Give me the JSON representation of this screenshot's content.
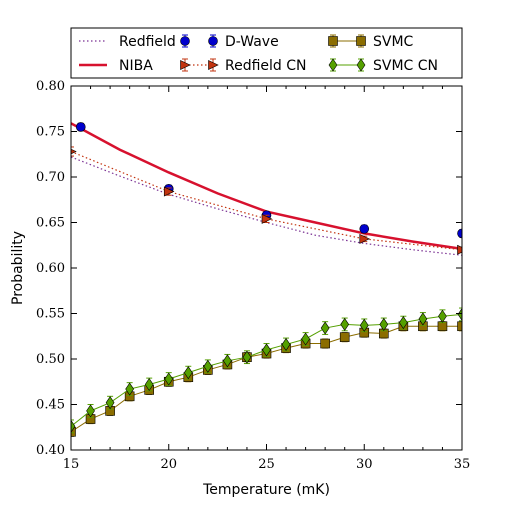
{
  "chart_data": {
    "type": "line",
    "xlabel": "Temperature (mK)",
    "ylabel": "Probability",
    "xlim": [
      15,
      35
    ],
    "ylim": [
      0.4,
      0.8
    ],
    "xticks": [
      15,
      20,
      25,
      30,
      35
    ],
    "xtick_labels": [
      "15",
      "20",
      "25",
      "30",
      "35"
    ],
    "yticks": [
      0.4,
      0.45,
      0.5,
      0.55,
      0.6,
      0.65,
      0.7,
      0.75,
      0.8
    ],
    "ytick_labels": [
      "0.40",
      "0.45",
      "0.50",
      "0.55",
      "0.60",
      "0.65",
      "0.70",
      "0.75",
      "0.80"
    ],
    "grid": false,
    "legend_position": "top",
    "series": [
      {
        "name": "Redfield",
        "style": "dotted-line",
        "color": "#7b3294",
        "x": [
          15,
          17.5,
          20,
          22.5,
          25,
          27.5,
          30,
          32.5,
          35
        ],
        "y": [
          0.722,
          0.701,
          0.681,
          0.665,
          0.65,
          0.636,
          0.627,
          0.62,
          0.614
        ]
      },
      {
        "name": "NIBA",
        "style": "solid-line",
        "color": "#d7112e",
        "x": [
          15,
          17.5,
          20,
          22.5,
          25,
          27.5,
          30,
          32.5,
          35
        ],
        "y": [
          0.759,
          0.73,
          0.705,
          0.682,
          0.662,
          0.65,
          0.638,
          0.629,
          0.621
        ]
      },
      {
        "name": "D-Wave",
        "style": "markers-circle",
        "color": "#0000cc",
        "x": [
          15.5,
          20,
          25,
          30,
          35
        ],
        "y": [
          0.755,
          0.687,
          0.658,
          0.643,
          0.638
        ],
        "err": [
          0.004,
          0.004,
          0.004,
          0.004,
          0.004
        ]
      },
      {
        "name": "Redfield CN",
        "style": "dotted-line-triangle",
        "color": "#c2330f",
        "x": [
          15,
          20,
          25,
          30,
          35
        ],
        "y": [
          0.728,
          0.684,
          0.654,
          0.632,
          0.62
        ],
        "err": [
          0.005,
          0.004,
          0.004,
          0.003,
          0.003
        ]
      },
      {
        "name": "SVMC",
        "style": "line-square",
        "color": "#8b6d00",
        "x": [
          15,
          16,
          17,
          18,
          19,
          20,
          21,
          22,
          23,
          24,
          25,
          26,
          27,
          28,
          29,
          30,
          31,
          32,
          33,
          34,
          35
        ],
        "y": [
          0.42,
          0.434,
          0.443,
          0.459,
          0.466,
          0.475,
          0.48,
          0.488,
          0.494,
          0.502,
          0.506,
          0.512,
          0.517,
          0.517,
          0.524,
          0.529,
          0.528,
          0.536,
          0.536,
          0.536,
          0.536
        ],
        "err": [
          0.005,
          0.005,
          0.005,
          0.005,
          0.005,
          0.005,
          0.005,
          0.005,
          0.005,
          0.005,
          0.005,
          0.005,
          0.005,
          0.005,
          0.005,
          0.005,
          0.005,
          0.005,
          0.005,
          0.005,
          0.005
        ]
      },
      {
        "name": "SVMC CN",
        "style": "line-diamond",
        "color": "#55a000",
        "x": [
          15,
          16,
          17,
          18,
          19,
          20,
          21,
          22,
          23,
          24,
          25,
          26,
          27,
          28,
          29,
          30,
          31,
          32,
          33,
          34,
          35
        ],
        "y": [
          0.426,
          0.443,
          0.452,
          0.467,
          0.472,
          0.478,
          0.485,
          0.492,
          0.498,
          0.502,
          0.51,
          0.516,
          0.522,
          0.534,
          0.538,
          0.537,
          0.538,
          0.54,
          0.544,
          0.547,
          0.549
        ],
        "err": [
          0.007,
          0.007,
          0.007,
          0.007,
          0.007,
          0.007,
          0.007,
          0.007,
          0.007,
          0.007,
          0.007,
          0.007,
          0.007,
          0.007,
          0.007,
          0.007,
          0.007,
          0.007,
          0.007,
          0.007,
          0.007
        ]
      }
    ]
  }
}
